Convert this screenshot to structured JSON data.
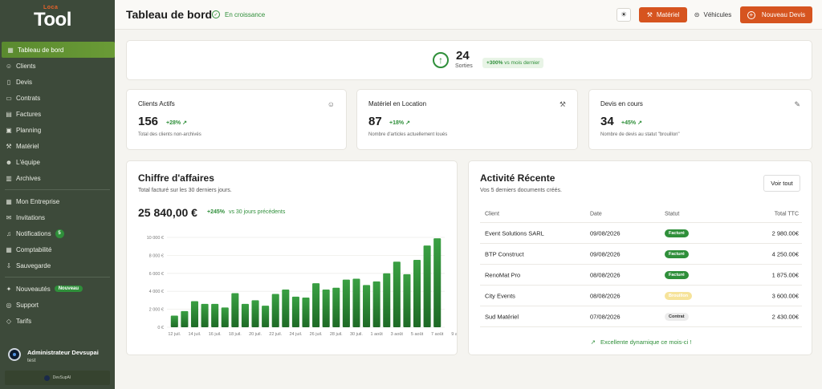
{
  "sidebar": {
    "logo_small": "Loca",
    "logo_big": "Tool",
    "items": [
      {
        "label": "Tableau de bord",
        "icon": "grid-icon"
      },
      {
        "label": "Clients",
        "icon": "users-icon"
      },
      {
        "label": "Devis",
        "icon": "file-icon"
      },
      {
        "label": "Contrats",
        "icon": "contract-icon"
      },
      {
        "label": "Factures",
        "icon": "invoice-icon"
      },
      {
        "label": "Planning",
        "icon": "calendar-icon"
      },
      {
        "label": "Matériel",
        "icon": "wrench-icon"
      },
      {
        "label": "L'équipe",
        "icon": "team-icon"
      },
      {
        "label": "Archives",
        "icon": "archive-icon"
      }
    ],
    "items2": [
      {
        "label": "Mon Entreprise",
        "icon": "building-icon"
      },
      {
        "label": "Invitations",
        "icon": "mail-icon"
      },
      {
        "label": "Notifications",
        "icon": "bell-icon",
        "badge": "5"
      },
      {
        "label": "Comptabilité",
        "icon": "calculator-icon"
      },
      {
        "label": "Sauvegarde",
        "icon": "download-icon"
      }
    ],
    "items3": [
      {
        "label": "Nouveautés",
        "icon": "sparkle-icon",
        "badge": "Nouveau"
      },
      {
        "label": "Support",
        "icon": "help-icon"
      },
      {
        "label": "Tarifs",
        "icon": "tag-icon"
      }
    ],
    "user_name": "Administrateur Devsupai",
    "user_role": "test",
    "brand": "DevSupAI"
  },
  "header": {
    "title": "Tableau de bord",
    "status": "En croissance",
    "btn_materiel": "Matériel",
    "btn_vehicules": "Véhicules",
    "btn_devis": "Nouveau Devis"
  },
  "sorties": {
    "value": "24",
    "label": "Sorties",
    "delta": "+300%",
    "delta_text": "vs mois dernier"
  },
  "stats": [
    {
      "title": "Clients Actifs",
      "value": "156",
      "pct": "+28%",
      "desc": "Total des clients non-archivés",
      "icon": "users-icon"
    },
    {
      "title": "Matériel en Location",
      "value": "87",
      "pct": "+18%",
      "desc": "Nombre d'articles actuellement loués",
      "icon": "wrench-icon"
    },
    {
      "title": "Devis en cours",
      "value": "34",
      "pct": "+45%",
      "desc": "Nombre de devis au statut \"brouillon\"",
      "icon": "file-edit-icon"
    }
  ],
  "revenue": {
    "title": "Chiffre d'affaires",
    "subtitle": "Total facturé sur les 30 derniers jours.",
    "total": "25 840,00 €",
    "pct": "+245%",
    "pct_text": "vs 30 jours précédents"
  },
  "chart_data": {
    "type": "bar",
    "title": "",
    "xlabel": "",
    "ylabel": "",
    "ylim": [
      0,
      10000
    ],
    "yticks": [
      "0 €",
      "2 000 €",
      "4 000 €",
      "6 000 €",
      "8 000 €",
      "10 000 €"
    ],
    "xtick_labels": [
      "12 juil.",
      "14 juil.",
      "16 juil.",
      "18 juil.",
      "20 juil.",
      "22 juil.",
      "24 juil.",
      "26 juil.",
      "28 juil.",
      "30 juil.",
      "1 août",
      "3 août",
      "5 août",
      "7 août",
      "9 août"
    ],
    "values": [
      1300,
      1800,
      2900,
      2600,
      2600,
      2200,
      3800,
      2600,
      3000,
      2400,
      3700,
      4200,
      3400,
      3300,
      4900,
      4200,
      4400,
      5300,
      5400,
      4700,
      5100,
      6000,
      7300,
      5900,
      7500,
      9100,
      9900
    ]
  },
  "activity": {
    "title": "Activité Récente",
    "subtitle": "Vos 5 derniers documents créés.",
    "voir_tout": "Voir tout",
    "columns": [
      "Client",
      "Date",
      "Statut",
      "Total TTC"
    ],
    "rows": [
      {
        "client": "Event Solutions SARL",
        "date": "09/08/2026",
        "status": "Facturé",
        "kind": "fact",
        "total": "2 980.00€"
      },
      {
        "client": "BTP Construct",
        "date": "09/08/2026",
        "status": "Facturé",
        "kind": "fact",
        "total": "4 250.00€"
      },
      {
        "client": "RenoMat Pro",
        "date": "08/08/2026",
        "status": "Facturé",
        "kind": "fact",
        "total": "1 875.00€"
      },
      {
        "client": "City Events",
        "date": "08/08/2026",
        "status": "Brouillon",
        "kind": "brou",
        "total": "3 600.00€"
      },
      {
        "client": "Sud Matériel",
        "date": "07/08/2026",
        "status": "Contrat",
        "kind": "contrat",
        "total": "2 430.00€"
      }
    ],
    "footer": "Excellente dynamique ce mois-ci !"
  },
  "colors": {
    "sidebar": "#3d4a3a",
    "accent": "#d6541f",
    "green": "#2f8f3a"
  }
}
